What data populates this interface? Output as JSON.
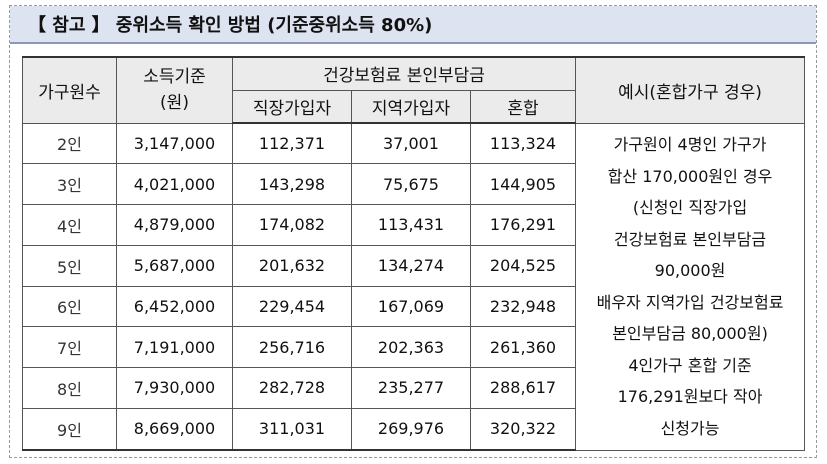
{
  "title": "【 참고 】 중위소득 확인 방법 (기준중위소득 80%)",
  "table": {
    "headers": {
      "household": "가구원수",
      "income_line1": "소득기준",
      "income_line2": "(원)",
      "premium_group": "건강보험료 본인부담금",
      "employee": "직장가입자",
      "regional": "지역가입자",
      "mixed": "혼합",
      "example": "예시(혼합가구 경우)"
    },
    "rows": [
      {
        "household": "2인",
        "income": "3,147,000",
        "employee": "112,371",
        "regional": "37,001",
        "mixed": "113,324"
      },
      {
        "household": "3인",
        "income": "4,021,000",
        "employee": "143,298",
        "regional": "75,675",
        "mixed": "144,905"
      },
      {
        "household": "4인",
        "income": "4,879,000",
        "employee": "174,082",
        "regional": "113,431",
        "mixed": "176,291"
      },
      {
        "household": "5인",
        "income": "5,687,000",
        "employee": "201,632",
        "regional": "134,274",
        "mixed": "204,525"
      },
      {
        "household": "6인",
        "income": "6,452,000",
        "employee": "229,454",
        "regional": "167,069",
        "mixed": "232,948"
      },
      {
        "household": "7인",
        "income": "7,191,000",
        "employee": "256,716",
        "regional": "202,363",
        "mixed": "261,360"
      },
      {
        "household": "8인",
        "income": "7,930,000",
        "employee": "282,728",
        "regional": "235,277",
        "mixed": "288,617"
      },
      {
        "household": "9인",
        "income": "8,669,000",
        "employee": "311,031",
        "regional": "269,976",
        "mixed": "320,322"
      }
    ],
    "example_lines": [
      "가구원이 4명인 가구가",
      "합산 170,000원인 경우",
      "(신청인 직장가입",
      "건강보험료 본인부담금",
      "90,000원",
      "배우자 지역가입 건강보험료",
      "본인부담금 80,000원)",
      "4인가구 혼합 기준",
      "176,291원보다 작아",
      "신청가능"
    ]
  }
}
